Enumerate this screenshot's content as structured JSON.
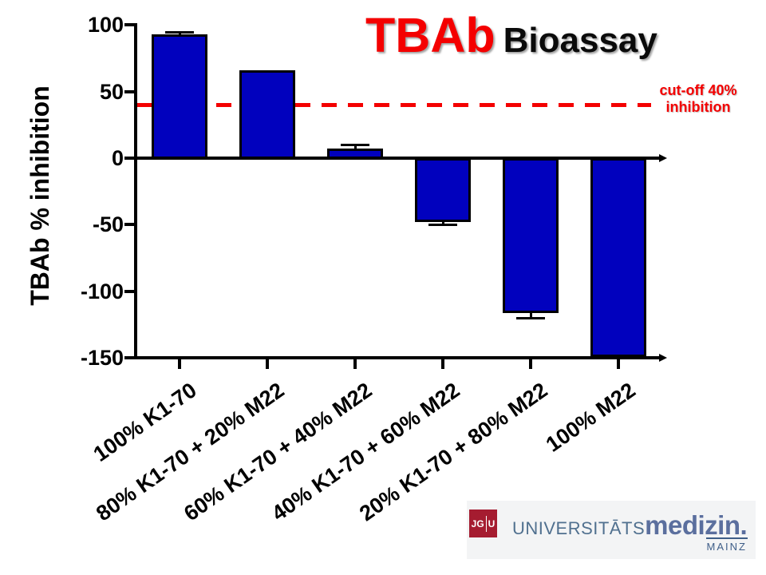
{
  "title": {
    "highlight": "TBAb",
    "rest": "Bioassay"
  },
  "cutoff_label": {
    "line1": "cut-off 40%",
    "line2": "inhibition"
  },
  "colors": {
    "accent_red": "#f40000",
    "bar_blue": "#0101be"
  },
  "chart_data": {
    "type": "bar",
    "title": "TBAb Bioassay",
    "xlabel": "",
    "ylabel": "TBAb % inhibition",
    "categories": [
      "100% K1-70",
      "80% K1-70 + 20% M22",
      "60% K1-70 + 40% M22",
      "40% K1-70 + 60% M22",
      "20% K1-70 + 80% M22",
      "100% M22"
    ],
    "values": [
      93,
      66,
      7,
      -47,
      -115,
      -148
    ],
    "errors": [
      1.5,
      0,
      3,
      3,
      5,
      2
    ],
    "yticks": [
      100,
      50,
      0,
      -50,
      -100,
      -150
    ],
    "ylim": [
      -150,
      100
    ],
    "cutoff_line": 40,
    "grid": false,
    "legend": "none",
    "bar_color": "#0101be",
    "cutoff_color": "#f40000"
  },
  "logo": {
    "initials_left": "JG",
    "initials_right": "U",
    "brand_light": "UNIVERSITĀTS",
    "brand_bold": "medizin.",
    "city": "MAINZ"
  }
}
